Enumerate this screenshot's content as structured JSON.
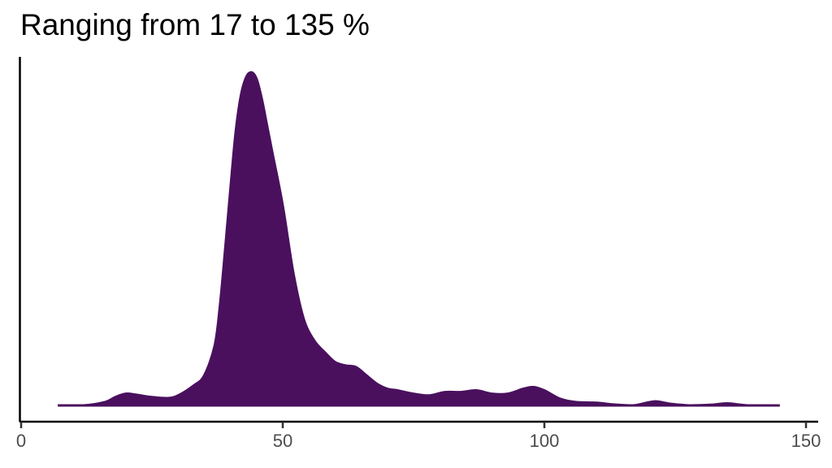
{
  "chart_data": {
    "type": "area",
    "subtype": "density",
    "title": "Ranging from 17 to 135 %",
    "xlabel": "",
    "ylabel": "",
    "xlim": [
      0,
      150
    ],
    "x_ticks": [
      0,
      50,
      100,
      150
    ],
    "x_tick_labels": [
      "0",
      "50",
      "100",
      "150"
    ],
    "y_ticks": [],
    "grid": false,
    "legend": null,
    "fill_color": "#4A105E",
    "x": [
      7,
      12,
      16,
      18,
      20,
      22,
      25,
      28,
      30,
      33,
      35,
      37,
      38,
      39,
      40,
      41,
      42,
      43,
      44,
      45,
      46,
      47,
      48,
      50,
      52,
      54,
      56,
      58,
      60,
      62,
      64,
      66,
      68,
      70,
      72,
      75,
      78,
      81,
      84,
      87,
      90,
      93,
      96,
      98,
      100,
      103,
      106,
      110,
      113,
      117,
      121,
      124,
      128,
      132,
      135,
      139,
      145
    ],
    "density_relative": [
      0.0,
      0.0,
      0.01,
      0.025,
      0.035,
      0.032,
      0.025,
      0.022,
      0.03,
      0.06,
      0.09,
      0.18,
      0.3,
      0.47,
      0.65,
      0.82,
      0.93,
      0.985,
      1.0,
      0.98,
      0.92,
      0.84,
      0.76,
      0.6,
      0.4,
      0.26,
      0.195,
      0.16,
      0.13,
      0.12,
      0.115,
      0.09,
      0.065,
      0.05,
      0.045,
      0.035,
      0.03,
      0.04,
      0.04,
      0.045,
      0.035,
      0.035,
      0.05,
      0.055,
      0.045,
      0.02,
      0.01,
      0.008,
      0.003,
      0.0,
      0.012,
      0.005,
      0.0,
      0.002,
      0.006,
      0.0,
      0.0
    ],
    "peak": {
      "x": 44,
      "density_relative": 1.0
    },
    "range": {
      "min": 17,
      "max": 135
    }
  }
}
